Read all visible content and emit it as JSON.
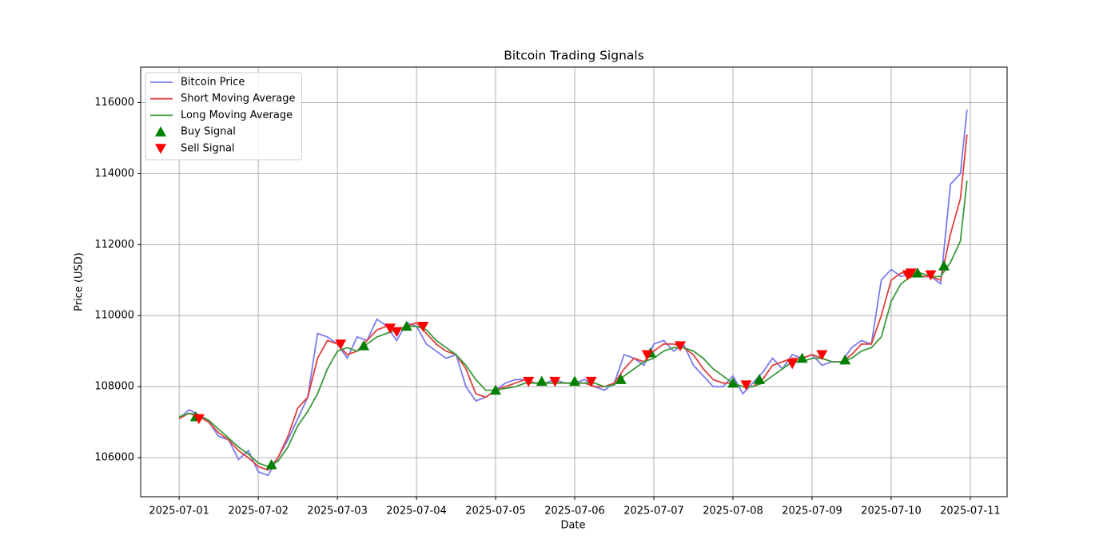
{
  "chart_data": {
    "type": "line",
    "title": "Bitcoin Trading Signals",
    "x_label": "Date",
    "y_label": "Price (USD)",
    "x": [
      "2025-07-01T00:00",
      "2025-07-01T03:00",
      "2025-07-01T06:00",
      "2025-07-01T09:00",
      "2025-07-01T12:00",
      "2025-07-01T15:00",
      "2025-07-01T18:00",
      "2025-07-01T21:00",
      "2025-07-02T00:00",
      "2025-07-02T03:00",
      "2025-07-02T06:00",
      "2025-07-02T09:00",
      "2025-07-02T12:00",
      "2025-07-02T15:00",
      "2025-07-02T18:00",
      "2025-07-02T21:00",
      "2025-07-03T00:00",
      "2025-07-03T03:00",
      "2025-07-03T06:00",
      "2025-07-03T09:00",
      "2025-07-03T12:00",
      "2025-07-03T15:00",
      "2025-07-03T18:00",
      "2025-07-03T21:00",
      "2025-07-04T00:00",
      "2025-07-04T03:00",
      "2025-07-04T06:00",
      "2025-07-04T09:00",
      "2025-07-04T12:00",
      "2025-07-04T15:00",
      "2025-07-04T18:00",
      "2025-07-04T21:00",
      "2025-07-05T00:00",
      "2025-07-05T03:00",
      "2025-07-05T06:00",
      "2025-07-05T09:00",
      "2025-07-05T12:00",
      "2025-07-05T15:00",
      "2025-07-05T18:00",
      "2025-07-05T21:00",
      "2025-07-06T00:00",
      "2025-07-06T03:00",
      "2025-07-06T06:00",
      "2025-07-06T09:00",
      "2025-07-06T12:00",
      "2025-07-06T15:00",
      "2025-07-06T18:00",
      "2025-07-06T21:00",
      "2025-07-07T00:00",
      "2025-07-07T03:00",
      "2025-07-07T06:00",
      "2025-07-07T09:00",
      "2025-07-07T12:00",
      "2025-07-07T15:00",
      "2025-07-07T18:00",
      "2025-07-07T21:00",
      "2025-07-08T00:00",
      "2025-07-08T03:00",
      "2025-07-08T06:00",
      "2025-07-08T09:00",
      "2025-07-08T12:00",
      "2025-07-08T15:00",
      "2025-07-08T18:00",
      "2025-07-08T21:00",
      "2025-07-09T00:00",
      "2025-07-09T03:00",
      "2025-07-09T06:00",
      "2025-07-09T09:00",
      "2025-07-09T12:00",
      "2025-07-09T15:00",
      "2025-07-09T18:00",
      "2025-07-09T21:00",
      "2025-07-10T00:00",
      "2025-07-10T03:00",
      "2025-07-10T06:00",
      "2025-07-10T09:00",
      "2025-07-10T12:00",
      "2025-07-10T15:00",
      "2025-07-10T18:00",
      "2025-07-10T21:00",
      "2025-07-10T23:00"
    ],
    "series": [
      {
        "name": "Bitcoin Price",
        "color": "#7b7bee",
        "values": [
          107100,
          107350,
          107200,
          107000,
          106600,
          106500,
          105950,
          106200,
          105600,
          105500,
          106000,
          106500,
          107100,
          107700,
          109500,
          109400,
          109200,
          108800,
          109400,
          109300,
          109900,
          109700,
          109300,
          109800,
          109700,
          109200,
          109000,
          108800,
          108900,
          108000,
          107600,
          107700,
          107900,
          108100,
          108200,
          108200,
          108100,
          108100,
          108200,
          108100,
          108100,
          108200,
          108000,
          107900,
          108100,
          108900,
          108800,
          108600,
          109200,
          109300,
          109000,
          109200,
          108600,
          108300,
          108000,
          108000,
          108300,
          107800,
          108100,
          108400,
          108800,
          108500,
          108900,
          108800,
          108900,
          108600,
          108700,
          108700,
          109100,
          109300,
          109200,
          111000,
          111300,
          111100,
          111200,
          111100,
          111100,
          110900,
          113700,
          114000,
          115800
        ]
      },
      {
        "name": "Short Moving Average",
        "color": "#e04040",
        "values": [
          107100,
          107250,
          107150,
          107000,
          106700,
          106500,
          106200,
          106000,
          105750,
          105650,
          106000,
          106600,
          107400,
          107700,
          108800,
          109300,
          109200,
          108900,
          109000,
          109300,
          109600,
          109700,
          109600,
          109700,
          109800,
          109500,
          109200,
          109000,
          108900,
          108500,
          107800,
          107700,
          107900,
          108000,
          108100,
          108200,
          108100,
          108100,
          108100,
          108100,
          108100,
          108100,
          108000,
          108000,
          108100,
          108500,
          108800,
          108700,
          109000,
          109200,
          109200,
          109100,
          108900,
          108500,
          108200,
          108100,
          108100,
          108000,
          108000,
          108200,
          108600,
          108700,
          108800,
          108800,
          108900,
          108800,
          108700,
          108700,
          108900,
          109200,
          109200,
          110000,
          111000,
          111200,
          111200,
          111100,
          111100,
          111000,
          112300,
          113300,
          115100
        ]
      },
      {
        "name": "Long Moving Average",
        "color": "#3a9a3a",
        "values": [
          107150,
          107250,
          107200,
          107050,
          106800,
          106550,
          106300,
          106100,
          105850,
          105750,
          105900,
          106300,
          106900,
          107300,
          107800,
          108500,
          109000,
          109100,
          109000,
          109200,
          109400,
          109500,
          109600,
          109700,
          109700,
          109600,
          109300,
          109100,
          108900,
          108600,
          108200,
          107900,
          107900,
          107950,
          108000,
          108100,
          108100,
          108100,
          108100,
          108100,
          108100,
          108100,
          108100,
          108000,
          108050,
          108300,
          108500,
          108700,
          108800,
          109000,
          109100,
          109100,
          109000,
          108800,
          108500,
          108300,
          108100,
          108000,
          108000,
          108100,
          108300,
          108500,
          108700,
          108700,
          108800,
          108800,
          108700,
          108700,
          108800,
          109000,
          109100,
          109400,
          110400,
          110900,
          111100,
          111200,
          111100,
          111100,
          111500,
          112100,
          113800
        ]
      },
      {
        "name": "Buy Signal",
        "color": "#008000",
        "marker": "triangle-up",
        "x": [
          "2025-07-01T05:00",
          "2025-07-02T04:00",
          "2025-07-03T08:00",
          "2025-07-03T21:00",
          "2025-07-05T00:00",
          "2025-07-05T14:00",
          "2025-07-06T00:00",
          "2025-07-06T14:00",
          "2025-07-06T23:00",
          "2025-07-08T00:00",
          "2025-07-08T08:00",
          "2025-07-08T21:00",
          "2025-07-09T10:00",
          "2025-07-10T08:00",
          "2025-07-10T16:00"
        ],
        "values": [
          107150,
          105800,
          109150,
          109700,
          107900,
          108150,
          108150,
          108200,
          108950,
          108100,
          108200,
          108800,
          108750,
          111200,
          111400
        ]
      },
      {
        "name": "Sell Signal",
        "color": "#ff0000",
        "marker": "triangle-down",
        "x": [
          "2025-07-01T06:00",
          "2025-07-03T01:00",
          "2025-07-03T16:00",
          "2025-07-03T18:00",
          "2025-07-04T02:00",
          "2025-07-05T10:00",
          "2025-07-05T18:00",
          "2025-07-06T05:00",
          "2025-07-06T22:00",
          "2025-07-07T08:00",
          "2025-07-08T04:00",
          "2025-07-08T18:00",
          "2025-07-09T03:00",
          "2025-07-10T05:00",
          "2025-07-10T06:00",
          "2025-07-10T12:00"
        ],
        "values": [
          107100,
          109200,
          109650,
          109550,
          109700,
          108150,
          108150,
          108150,
          108900,
          109150,
          108050,
          108650,
          108900,
          111150,
          111200,
          111150
        ]
      }
    ],
    "xlim": [
      "2025-06-30T12:20",
      "2025-07-11T11:10"
    ],
    "xticks": [
      "2025-07-01",
      "2025-07-02",
      "2025-07-03",
      "2025-07-04",
      "2025-07-05",
      "2025-07-06",
      "2025-07-07",
      "2025-07-08",
      "2025-07-09",
      "2025-07-10",
      "2025-07-11"
    ],
    "ylim": [
      104900,
      117000
    ],
    "yticks": [
      106000,
      108000,
      110000,
      112000,
      114000,
      116000
    ],
    "grid": true,
    "legend": "upper-left"
  }
}
